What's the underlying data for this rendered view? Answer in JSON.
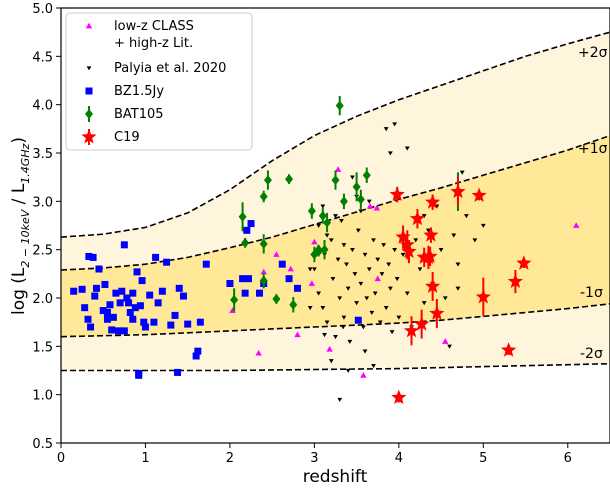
{
  "chart_data": {
    "type": "scatter",
    "title": "",
    "xlabel": "redshift",
    "ylabel": "log (L",
    "ylabel_sub1": "2 − 10keV",
    "ylabel_mid": " / L",
    "ylabel_sub2": "1.4GHz",
    "ylabel_end": ")",
    "xlim": [
      0,
      6.5
    ],
    "ylim": [
      0.5,
      5.0
    ],
    "xticks": [
      0,
      1,
      2,
      3,
      4,
      5,
      6
    ],
    "yticks": [
      0.5,
      1.0,
      1.5,
      2.0,
      2.5,
      3.0,
      3.5,
      4.0,
      4.5,
      5.0
    ],
    "grid": false,
    "legend_position": "top-left",
    "band_labels": {
      "p2": "+2σ",
      "p1": "+1σ",
      "m1": "-1σ",
      "m2": "-2σ"
    },
    "curves": {
      "p2": [
        [
          0,
          2.63
        ],
        [
          0.5,
          2.66
        ],
        [
          1,
          2.73
        ],
        [
          1.5,
          2.88
        ],
        [
          2,
          3.12
        ],
        [
          2.5,
          3.42
        ],
        [
          3,
          3.68
        ],
        [
          3.5,
          3.88
        ],
        [
          4,
          4.05
        ],
        [
          4.5,
          4.2
        ],
        [
          5,
          4.35
        ],
        [
          5.5,
          4.5
        ],
        [
          6,
          4.63
        ],
        [
          6.5,
          4.75
        ]
      ],
      "p1": [
        [
          0,
          2.29
        ],
        [
          0.5,
          2.31
        ],
        [
          1,
          2.35
        ],
        [
          1.5,
          2.42
        ],
        [
          2,
          2.52
        ],
        [
          2.5,
          2.63
        ],
        [
          3,
          2.76
        ],
        [
          3.5,
          2.89
        ],
        [
          4,
          3.02
        ],
        [
          4.5,
          3.14
        ],
        [
          5,
          3.27
        ],
        [
          5.5,
          3.4
        ],
        [
          6,
          3.53
        ],
        [
          6.5,
          3.68
        ]
      ],
      "m1": [
        [
          0,
          1.6
        ],
        [
          0.5,
          1.61
        ],
        [
          1,
          1.62
        ],
        [
          1.5,
          1.64
        ],
        [
          2,
          1.66
        ],
        [
          2.5,
          1.68
        ],
        [
          3,
          1.7
        ],
        [
          3.5,
          1.72
        ],
        [
          4,
          1.74
        ],
        [
          4.5,
          1.77
        ],
        [
          5,
          1.81
        ],
        [
          5.5,
          1.85
        ],
        [
          6,
          1.89
        ],
        [
          6.5,
          1.94
        ]
      ],
      "m2": [
        [
          0,
          1.25
        ],
        [
          1,
          1.25
        ],
        [
          2,
          1.25
        ],
        [
          3,
          1.26
        ],
        [
          4,
          1.27
        ],
        [
          5,
          1.29
        ],
        [
          6,
          1.31
        ],
        [
          6.5,
          1.32
        ]
      ]
    },
    "colors": {
      "outer_band": "#fff5dc",
      "inner_band": "#ffe898",
      "classs": "#ff00ff",
      "palyia": "#000000",
      "bz": "#0000ff",
      "bat": "#008000",
      "c19": "#ff0000"
    },
    "series": [
      {
        "name": "low-z CLASS\n+ high-z Lit.",
        "marker": "triangle-up",
        "points": [
          [
            2.34,
            1.43
          ],
          [
            2.4,
            2.27
          ],
          [
            2.55,
            2.45
          ],
          [
            2.72,
            2.3
          ],
          [
            2.97,
            2.15
          ],
          [
            3.18,
            1.47
          ],
          [
            3.28,
            3.33
          ],
          [
            3.58,
            1.2
          ],
          [
            3.66,
            2.95
          ],
          [
            3.74,
            2.93
          ],
          [
            3.75,
            2.2
          ],
          [
            3.0,
            2.58
          ],
          [
            4.55,
            1.55
          ],
          [
            6.1,
            2.75
          ],
          [
            2.03,
            1.87
          ],
          [
            2.8,
            1.62
          ]
        ]
      },
      {
        "name": "Palyia et al. 2020",
        "marker": "triangle-down",
        "points": [
          [
            3.0,
            2.3
          ],
          [
            3.05,
            2.05
          ],
          [
            3.1,
            1.9
          ],
          [
            3.12,
            2.45
          ],
          [
            3.15,
            1.75
          ],
          [
            3.2,
            2.6
          ],
          [
            3.22,
            2.2
          ],
          [
            3.25,
            1.6
          ],
          [
            3.28,
            2.4
          ],
          [
            3.3,
            2.0
          ],
          [
            3.32,
            2.8
          ],
          [
            3.35,
            1.8
          ],
          [
            3.38,
            2.35
          ],
          [
            3.4,
            2.1
          ],
          [
            3.42,
            1.55
          ],
          [
            3.45,
            2.5
          ],
          [
            3.48,
            2.25
          ],
          [
            3.5,
            1.95
          ],
          [
            3.52,
            2.7
          ],
          [
            3.55,
            2.15
          ],
          [
            3.58,
            1.7
          ],
          [
            3.6,
            2.45
          ],
          [
            3.62,
            2.0
          ],
          [
            3.65,
            2.3
          ],
          [
            3.68,
            1.85
          ],
          [
            3.7,
            2.6
          ],
          [
            3.72,
            2.05
          ],
          [
            3.75,
            2.4
          ],
          [
            3.78,
            1.75
          ],
          [
            3.8,
            2.25
          ],
          [
            3.82,
            2.55
          ],
          [
            3.85,
            1.9
          ],
          [
            3.88,
            2.35
          ],
          [
            3.9,
            2.1
          ],
          [
            3.92,
            1.65
          ],
          [
            3.95,
            2.5
          ],
          [
            3.98,
            2.2
          ],
          [
            4.0,
            1.8
          ],
          [
            4.05,
            2.45
          ],
          [
            4.1,
            2.05
          ],
          [
            4.15,
            1.7
          ],
          [
            4.2,
            2.6
          ],
          [
            4.25,
            2.3
          ],
          [
            4.3,
            1.95
          ],
          [
            4.35,
            2.7
          ],
          [
            4.4,
            2.15
          ],
          [
            4.5,
            2.5
          ],
          [
            4.55,
            2.0
          ],
          [
            4.6,
            1.5
          ],
          [
            4.65,
            2.65
          ],
          [
            4.7,
            2.35
          ],
          [
            4.8,
            2.85
          ],
          [
            4.9,
            2.6
          ],
          [
            5.0,
            2.75
          ],
          [
            3.1,
            2.95
          ],
          [
            3.25,
            2.85
          ],
          [
            3.45,
            3.25
          ],
          [
            3.5,
            3.05
          ],
          [
            3.85,
            3.75
          ],
          [
            3.95,
            3.8
          ],
          [
            3.3,
            0.95
          ],
          [
            3.6,
            1.45
          ],
          [
            3.7,
            1.3
          ],
          [
            3.05,
            2.75
          ],
          [
            3.15,
            2.65
          ],
          [
            3.35,
            2.55
          ],
          [
            2.95,
            2.3
          ],
          [
            3.2,
            1.35
          ],
          [
            3.4,
            1.25
          ],
          [
            3.9,
            3.5
          ],
          [
            4.1,
            3.55
          ],
          [
            4.3,
            2.85
          ],
          [
            4.45,
            2.95
          ],
          [
            3.55,
            2.9
          ],
          [
            3.65,
            3.0
          ],
          [
            4.7,
            2.1
          ],
          [
            4.75,
            3.3
          ],
          [
            2.95,
            1.9
          ],
          [
            3.12,
            1.62
          ],
          [
            3.34,
            1.7
          ]
        ]
      },
      {
        "name": "BZ1.5Jy",
        "marker": "square",
        "points": [
          [
            0.15,
            2.07
          ],
          [
            0.25,
            2.09
          ],
          [
            0.32,
            1.78
          ],
          [
            0.33,
            2.43
          ],
          [
            0.35,
            1.7
          ],
          [
            0.38,
            2.42
          ],
          [
            0.4,
            2.02
          ],
          [
            0.42,
            2.1
          ],
          [
            0.5,
            1.87
          ],
          [
            0.52,
            2.14
          ],
          [
            0.55,
            1.85
          ],
          [
            0.58,
            1.93
          ],
          [
            0.6,
            1.67
          ],
          [
            0.62,
            1.8
          ],
          [
            0.65,
            2.05
          ],
          [
            0.68,
            1.66
          ],
          [
            0.7,
            1.95
          ],
          [
            0.72,
            2.07
          ],
          [
            0.75,
            1.66
          ],
          [
            0.78,
            2.0
          ],
          [
            0.8,
            1.95
          ],
          [
            0.82,
            1.85
          ],
          [
            0.85,
            1.78
          ],
          [
            0.88,
            1.9
          ],
          [
            0.9,
            2.27
          ],
          [
            0.92,
            1.22
          ],
          [
            0.94,
            1.92
          ],
          [
            0.96,
            2.18
          ],
          [
            0.98,
            1.75
          ],
          [
            1.0,
            1.7
          ],
          [
            1.05,
            2.03
          ],
          [
            1.1,
            1.75
          ],
          [
            1.12,
            2.42
          ],
          [
            1.15,
            1.95
          ],
          [
            1.2,
            2.07
          ],
          [
            1.25,
            2.37
          ],
          [
            1.3,
            1.72
          ],
          [
            1.35,
            1.82
          ],
          [
            1.38,
            1.23
          ],
          [
            1.4,
            2.1
          ],
          [
            1.45,
            2.02
          ],
          [
            1.5,
            1.73
          ],
          [
            1.6,
            1.4
          ],
          [
            1.65,
            1.75
          ],
          [
            1.72,
            2.35
          ],
          [
            2.0,
            2.15
          ],
          [
            2.15,
            2.2
          ],
          [
            2.2,
            2.7
          ],
          [
            2.22,
            2.2
          ],
          [
            2.25,
            2.77
          ],
          [
            2.35,
            2.05
          ],
          [
            2.4,
            2.15
          ],
          [
            2.62,
            2.35
          ],
          [
            2.7,
            2.2
          ],
          [
            2.8,
            2.1
          ],
          [
            0.55,
            1.78
          ],
          [
            0.85,
            2.05
          ],
          [
            0.92,
            1.2
          ],
          [
            1.62,
            1.45
          ],
          [
            2.18,
            2.05
          ],
          [
            3.52,
            1.77
          ],
          [
            0.28,
            1.9
          ],
          [
            0.45,
            2.3
          ],
          [
            0.75,
            2.55
          ]
        ]
      },
      {
        "name": "BAT105",
        "marker": "diamond",
        "points": [
          [
            2.15,
            2.84
          ],
          [
            2.18,
            2.57
          ],
          [
            2.05,
            1.98
          ],
          [
            2.4,
            2.56
          ],
          [
            2.45,
            3.22
          ],
          [
            2.4,
            3.05
          ],
          [
            2.4,
            2.18
          ],
          [
            2.55,
            1.99
          ],
          [
            2.7,
            3.23
          ],
          [
            2.75,
            1.93
          ],
          [
            2.97,
            2.9
          ],
          [
            3.0,
            2.45
          ],
          [
            3.05,
            2.48
          ],
          [
            3.1,
            2.85
          ],
          [
            3.05,
            2.5
          ],
          [
            3.12,
            2.5
          ],
          [
            3.25,
            3.22
          ],
          [
            3.3,
            3.99
          ],
          [
            3.35,
            3.0
          ],
          [
            3.5,
            3.15
          ],
          [
            3.55,
            3.02
          ],
          [
            3.62,
            3.27
          ],
          [
            3.15,
            2.78
          ],
          [
            4.7,
            3.1
          ]
        ],
        "errors": [
          0.15,
          0.05,
          0.12,
          0.1,
          0.1,
          0.06,
          0.08,
          0.05,
          0.05,
          0.08,
          0.08,
          0.08,
          0.05,
          0.08,
          0.05,
          0.1,
          0.1,
          0.1,
          0.08,
          0.15,
          0.1,
          0.08,
          0.1,
          0.2
        ]
      },
      {
        "name": "C19",
        "marker": "star",
        "points": [
          [
            3.98,
            3.07
          ],
          [
            4.0,
            0.97
          ],
          [
            4.05,
            2.63
          ],
          [
            4.1,
            2.55
          ],
          [
            4.12,
            2.48
          ],
          [
            4.15,
            1.66
          ],
          [
            4.22,
            2.82
          ],
          [
            4.27,
            1.73
          ],
          [
            4.3,
            2.42
          ],
          [
            4.35,
            2.42
          ],
          [
            4.37,
            2.43
          ],
          [
            4.38,
            2.65
          ],
          [
            4.4,
            2.12
          ],
          [
            4.4,
            2.99
          ],
          [
            4.45,
            1.84
          ],
          [
            4.7,
            3.1
          ],
          [
            4.95,
            3.06
          ],
          [
            5.0,
            2.01
          ],
          [
            5.3,
            1.46
          ],
          [
            5.38,
            2.17
          ],
          [
            5.48,
            2.36
          ],
          [
            4.35,
            2.42
          ]
        ],
        "errors": [
          0.08,
          0.05,
          0.12,
          0.15,
          0.12,
          0.15,
          0.1,
          0.15,
          0.1,
          0.12,
          0.1,
          0.08,
          0.15,
          0.08,
          0.15,
          0.15,
          0.05,
          0.2,
          0.05,
          0.12,
          0.05,
          0.08
        ]
      }
    ]
  }
}
